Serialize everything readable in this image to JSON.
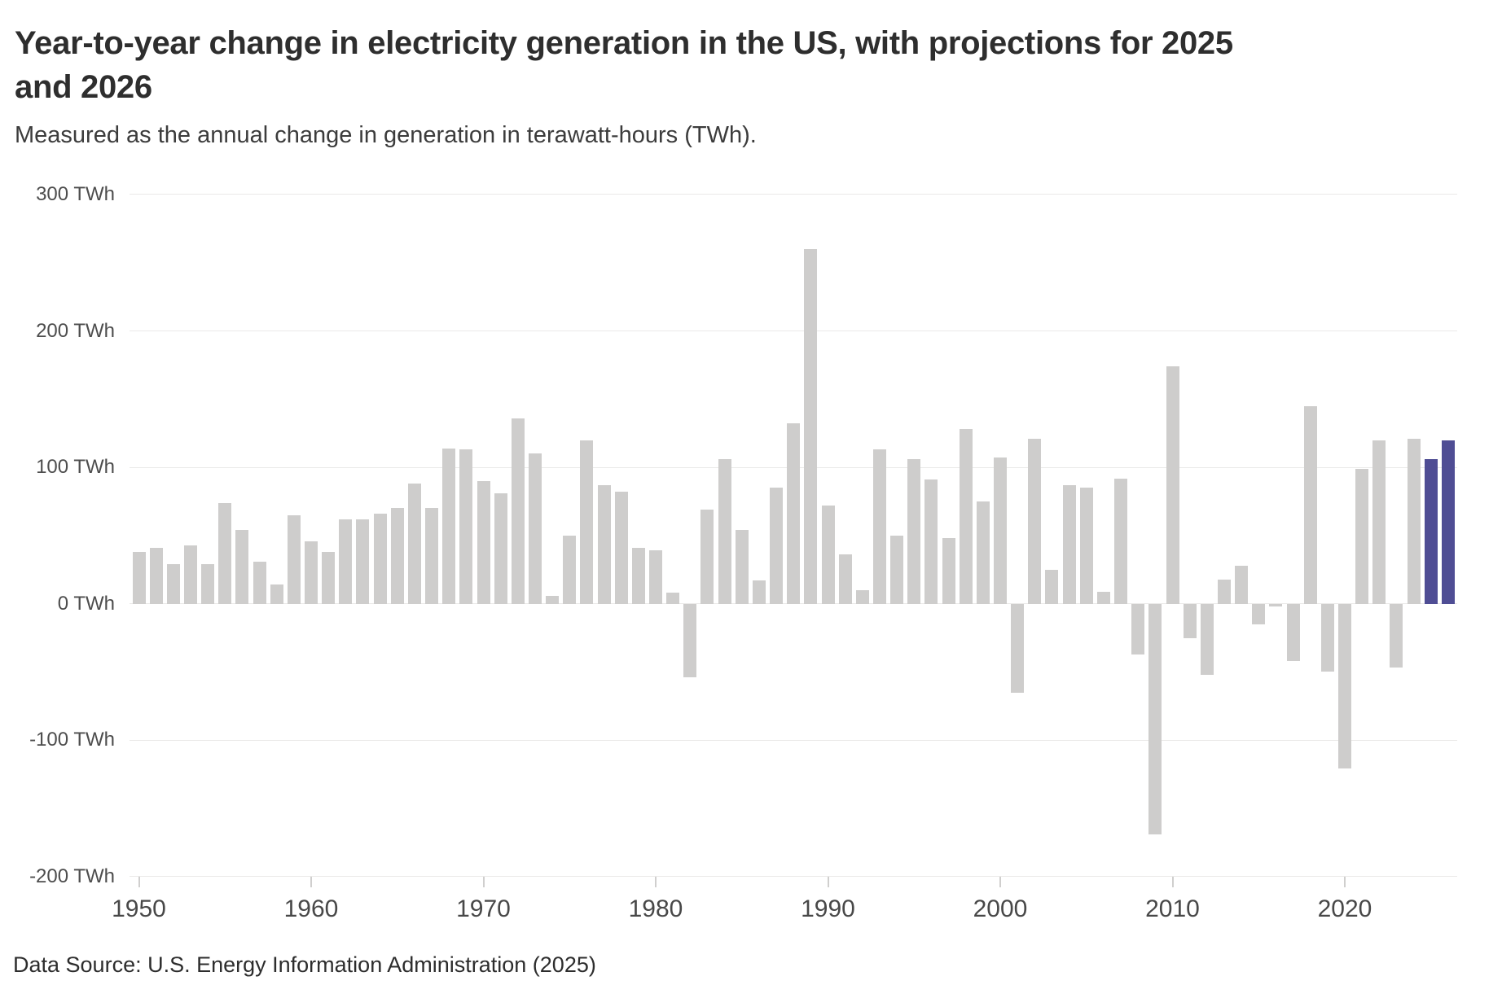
{
  "header": {
    "title": "Year-to-year change in electricity generation in the US, with projections for 2025 and 2026",
    "subtitle": "Measured as the annual change in generation in terawatt-hours (TWh)."
  },
  "footer": {
    "source": "Data Source: U.S. Energy Information Administration (2025)"
  },
  "chart_data": {
    "type": "bar",
    "title": "Year-to-year change in electricity generation in the US, with projections for 2025 and 2026",
    "subtitle": "Measured as the annual change in generation in terawatt-hours (TWh).",
    "unit": "TWh",
    "ylim": [
      -200,
      300
    ],
    "grid": "horizontal",
    "legend": "none",
    "yticks": [
      {
        "value": 300,
        "label": "300 TWh"
      },
      {
        "value": 200,
        "label": "200 TWh"
      },
      {
        "value": 100,
        "label": "100 TWh"
      },
      {
        "value": 0,
        "label": "0 TWh"
      },
      {
        "value": -100,
        "label": "-100 TWh"
      },
      {
        "value": -200,
        "label": "-200 TWh"
      }
    ],
    "xticks": [
      1950,
      1960,
      1970,
      1980,
      1990,
      2000,
      2010,
      2020
    ],
    "years": [
      1950,
      1951,
      1952,
      1953,
      1954,
      1955,
      1956,
      1957,
      1958,
      1959,
      1960,
      1961,
      1962,
      1963,
      1964,
      1965,
      1966,
      1967,
      1968,
      1969,
      1970,
      1971,
      1972,
      1973,
      1974,
      1975,
      1976,
      1977,
      1978,
      1979,
      1980,
      1981,
      1982,
      1983,
      1984,
      1985,
      1986,
      1987,
      1988,
      1989,
      1990,
      1991,
      1992,
      1993,
      1994,
      1995,
      1996,
      1997,
      1998,
      1999,
      2000,
      2001,
      2002,
      2003,
      2004,
      2005,
      2006,
      2007,
      2008,
      2009,
      2010,
      2011,
      2012,
      2013,
      2014,
      2015,
      2016,
      2017,
      2018,
      2019,
      2020,
      2021,
      2022,
      2023,
      2024,
      2025,
      2026
    ],
    "values": [
      38,
      41,
      29,
      43,
      29,
      74,
      54,
      31,
      14,
      65,
      46,
      38,
      62,
      62,
      66,
      70,
      88,
      70,
      114,
      113,
      90,
      81,
      136,
      110,
      6,
      50,
      120,
      87,
      82,
      41,
      39,
      8,
      -54,
      69,
      106,
      54,
      17,
      85,
      132,
      260,
      72,
      36,
      10,
      113,
      50,
      106,
      91,
      48,
      128,
      75,
      107,
      -65,
      121,
      25,
      87,
      85,
      9,
      92,
      -37,
      -169,
      174,
      -25,
      -52,
      18,
      28,
      -15,
      -2,
      -42,
      145,
      -50,
      -121,
      99,
      120,
      -47,
      121,
      106,
      120
    ],
    "projection_years": [
      2025,
      2026
    ],
    "colors": {
      "bar": "#cecdcc",
      "projection": "#4f4d94",
      "gridline": "#eae9e8"
    }
  }
}
